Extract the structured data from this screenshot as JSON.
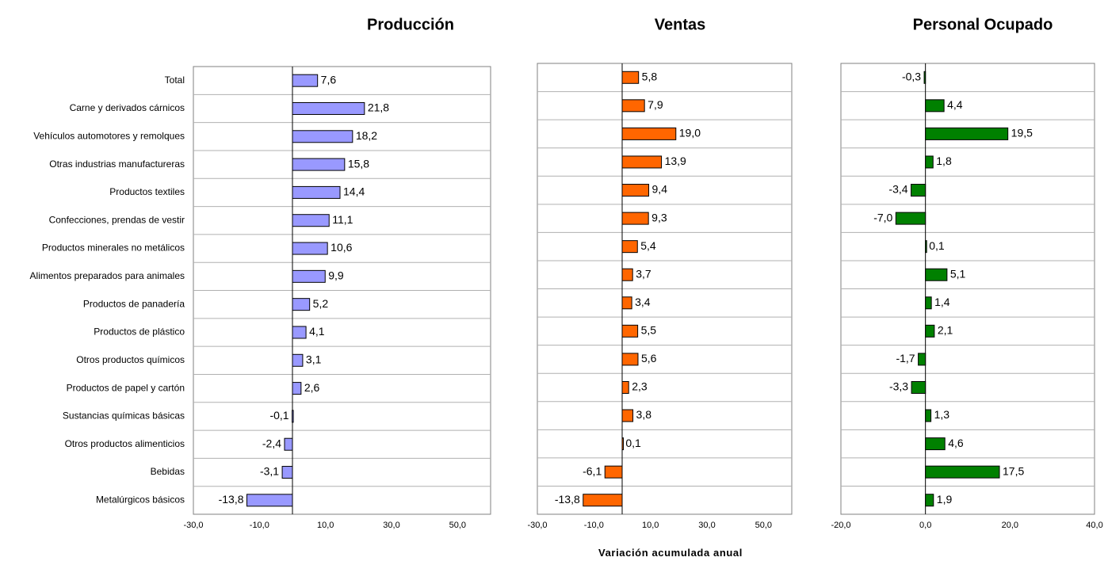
{
  "chart_data": {
    "type": "bar",
    "orientation": "horizontal",
    "xlabel": "Variación acumulada anual",
    "categories": [
      "Total",
      "Carne y derivados cárnicos",
      "Vehículos automotores y remolques",
      "Otras industrias manufactureras",
      "Productos textiles",
      "Confecciones, prendas de vestir",
      "Productos minerales no metálicos",
      "Alimentos preparados para animales",
      "Productos de panadería",
      "Productos de plástico",
      "Otros productos químicos",
      "Productos de papel y cartón",
      "Sustancias químicas básicas",
      "Otros productos alimenticios",
      "Bebidas",
      "Metalúrgicos básicos"
    ],
    "panels": [
      {
        "title": "Producción",
        "values": [
          7.6,
          21.8,
          18.2,
          15.8,
          14.4,
          11.1,
          10.6,
          9.9,
          5.2,
          4.1,
          3.1,
          2.6,
          -0.1,
          -2.4,
          -3.1,
          -13.8
        ],
        "labels": [
          "7,6",
          "21,8",
          "18,2",
          "15,8",
          "14,4",
          "11,1",
          "10,6",
          "9,9",
          "5,2",
          "4,1",
          "3,1",
          "2,6",
          "-0,1",
          "-2,4",
          "-3,1",
          "-13,8"
        ],
        "xlim": [
          -30,
          60
        ],
        "ticks": [
          -30,
          -10,
          10,
          30,
          50
        ],
        "tick_labels": [
          "-30,0",
          "-10,0",
          "10,0",
          "30,0",
          "50,0"
        ],
        "color": "#9999ff",
        "grid": true
      },
      {
        "title": "Ventas",
        "values": [
          5.8,
          7.9,
          19.0,
          13.9,
          9.4,
          9.3,
          5.4,
          3.7,
          3.4,
          5.5,
          5.6,
          2.3,
          3.8,
          0.1,
          -6.1,
          -13.8
        ],
        "labels": [
          "5,8",
          "7,9",
          "19,0",
          "13,9",
          "9,4",
          "9,3",
          "5,4",
          "3,7",
          "3,4",
          "5,5",
          "5,6",
          "2,3",
          "3,8",
          "0,1",
          "-6,1",
          "-13,8"
        ],
        "xlim": [
          -30,
          60
        ],
        "ticks": [
          -30,
          -10,
          10,
          30,
          50
        ],
        "tick_labels": [
          "-30,0",
          "-10,0",
          "10,0",
          "30,0",
          "50,0"
        ],
        "color": "#ff6600",
        "grid": true
      },
      {
        "title": "Personal Ocupado",
        "values": [
          -0.3,
          4.4,
          19.5,
          1.8,
          -3.4,
          -7.0,
          0.1,
          5.1,
          1.4,
          2.1,
          -1.7,
          -3.3,
          1.3,
          4.6,
          17.5,
          1.9
        ],
        "labels": [
          "-0,3",
          "4,4",
          "19,5",
          "1,8",
          "-3,4",
          "-7,0",
          "0,1",
          "5,1",
          "1,4",
          "2,1",
          "-1,7",
          "-3,3",
          "1,3",
          "4,6",
          "17,5",
          "1,9"
        ],
        "xlim": [
          -20,
          40
        ],
        "ticks": [
          -20,
          0,
          20,
          40
        ],
        "tick_labels": [
          "-20,0",
          "0,0",
          "20,0",
          "40,0"
        ],
        "color": "#008000",
        "grid": true
      }
    ]
  }
}
